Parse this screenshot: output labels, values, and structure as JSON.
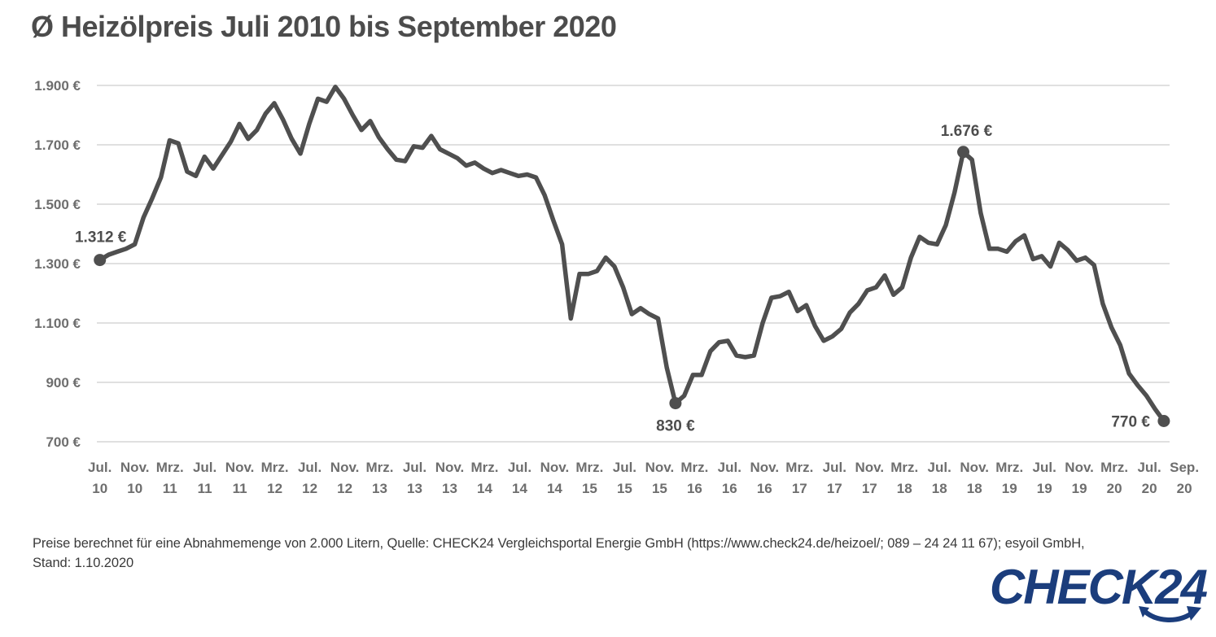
{
  "page": {
    "title": "Ø Heizölpreis Juli 2010 bis September 2020"
  },
  "chart_data": {
    "type": "line",
    "title": "Ø Heizölpreis Juli 2010 bis September 2020",
    "unit": "€",
    "currency": "EUR",
    "ylim": [
      700,
      1900
    ],
    "grid": "horizontal-only",
    "legend": "none",
    "y_ticks": [
      {
        "value": 1900,
        "label": "1.900 €"
      },
      {
        "value": 1700,
        "label": "1.700 €"
      },
      {
        "value": 1500,
        "label": "1.500 €"
      },
      {
        "value": 1300,
        "label": "1.300 €"
      },
      {
        "value": 1100,
        "label": "1.100 €"
      },
      {
        "value": 900,
        "label": "900 €"
      },
      {
        "value": 700,
        "label": "700 €"
      }
    ],
    "x_ticks": [
      {
        "month": "Jul.",
        "year": "10"
      },
      {
        "month": "Nov.",
        "year": "10"
      },
      {
        "month": "Mrz.",
        "year": "11"
      },
      {
        "month": "Jul.",
        "year": "11"
      },
      {
        "month": "Nov.",
        "year": "11"
      },
      {
        "month": "Mrz.",
        "year": "12"
      },
      {
        "month": "Jul.",
        "year": "12"
      },
      {
        "month": "Nov.",
        "year": "12"
      },
      {
        "month": "Mrz.",
        "year": "13"
      },
      {
        "month": "Jul.",
        "year": "13"
      },
      {
        "month": "Nov.",
        "year": "13"
      },
      {
        "month": "Mrz.",
        "year": "14"
      },
      {
        "month": "Jul.",
        "year": "14"
      },
      {
        "month": "Nov.",
        "year": "14"
      },
      {
        "month": "Mrz.",
        "year": "15"
      },
      {
        "month": "Jul.",
        "year": "15"
      },
      {
        "month": "Nov.",
        "year": "15"
      },
      {
        "month": "Mrz.",
        "year": "16"
      },
      {
        "month": "Jul.",
        "year": "16"
      },
      {
        "month": "Nov.",
        "year": "16"
      },
      {
        "month": "Mrz.",
        "year": "17"
      },
      {
        "month": "Jul.",
        "year": "17"
      },
      {
        "month": "Nov.",
        "year": "17"
      },
      {
        "month": "Mrz.",
        "year": "18"
      },
      {
        "month": "Jul.",
        "year": "18"
      },
      {
        "month": "Nov.",
        "year": "18"
      },
      {
        "month": "Mrz.",
        "year": "19"
      },
      {
        "month": "Jul.",
        "year": "19"
      },
      {
        "month": "Nov.",
        "year": "19"
      },
      {
        "month": "Mrz.",
        "year": "20"
      },
      {
        "month": "Jul.",
        "year": "20"
      },
      {
        "month": "Sep.",
        "year": "20"
      }
    ],
    "series": [
      {
        "name": "Heizölpreis (Abnahmemenge 2.000 Liter)",
        "start": "Jul. 2010",
        "end": "Sep. 2020",
        "interval": "monatlich",
        "values": [
          1312,
          1330,
          1340,
          1350,
          1365,
          1455,
          1520,
          1590,
          1715,
          1705,
          1610,
          1595,
          1660,
          1620,
          1665,
          1710,
          1770,
          1720,
          1750,
          1805,
          1840,
          1785,
          1720,
          1670,
          1770,
          1855,
          1845,
          1895,
          1855,
          1800,
          1750,
          1780,
          1725,
          1685,
          1650,
          1645,
          1695,
          1690,
          1730,
          1685,
          1670,
          1655,
          1630,
          1640,
          1620,
          1605,
          1615,
          1605,
          1595,
          1600,
          1590,
          1530,
          1445,
          1365,
          1115,
          1265,
          1265,
          1275,
          1320,
          1290,
          1220,
          1130,
          1150,
          1130,
          1115,
          950,
          830,
          855,
          925,
          925,
          1005,
          1035,
          1040,
          990,
          985,
          990,
          1100,
          1185,
          1190,
          1205,
          1140,
          1160,
          1090,
          1040,
          1055,
          1080,
          1135,
          1165,
          1210,
          1220,
          1260,
          1195,
          1220,
          1320,
          1390,
          1370,
          1365,
          1430,
          1540,
          1676,
          1650,
          1470,
          1350,
          1350,
          1340,
          1375,
          1395,
          1315,
          1325,
          1290,
          1370,
          1345,
          1310,
          1320,
          1295,
          1165,
          1085,
          1025,
          930,
          890,
          855,
          810,
          770
        ]
      }
    ],
    "annotations": [
      {
        "id": "start",
        "label": "1.312 €",
        "value": 1312,
        "index": 0,
        "placement": "above-start"
      },
      {
        "id": "low-2016",
        "label": "830 €",
        "value": 830,
        "index": 66,
        "placement": "below"
      },
      {
        "id": "peak-2018",
        "label": "1.676 €",
        "value": 1676,
        "index": 99,
        "placement": "above"
      },
      {
        "id": "end",
        "label": "770 €",
        "value": 770,
        "index": 122,
        "placement": "left-of-end"
      }
    ],
    "colors": {
      "line": "#4f4f4f",
      "grid": "#d6d6d6",
      "tick_text": "#6e6e6e",
      "annotation_text": "#4d4d4d"
    }
  },
  "footer": {
    "line1": "Preise berechnet für eine Abnahmemenge von 2.000 Litern, Quelle: CHECK24 Vergleichsportal Energie GmbH (https://www.check24.de/heizoel/; 089 – 24 24 11 67); esyoil GmbH,",
    "line2": "Stand: 1.10.2020"
  },
  "logo": {
    "text": "CHECK24",
    "color": "#1b3d7c"
  }
}
